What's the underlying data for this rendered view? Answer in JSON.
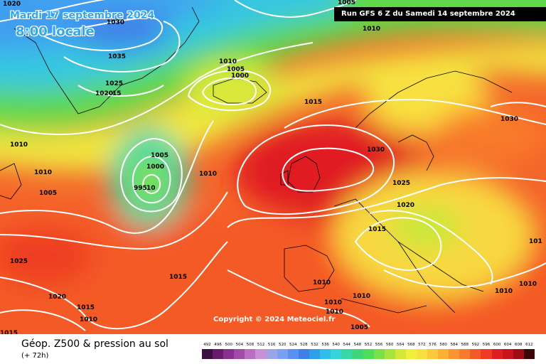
{
  "header": {
    "date": "Mardi 17 septembre 2024",
    "time": "8:00 locale",
    "run": "Run GFS 6 Z du Samedi 14 septembre 2024",
    "copyright": "Copyright © 2024 Meteociel.fr"
  },
  "footer": {
    "title": "Géop. Z500 & pression au sol",
    "subtitle": "(+ 72h)"
  },
  "scale": {
    "labels": [
      "492",
      "496",
      "500",
      "504",
      "508",
      "512",
      "516",
      "520",
      "524",
      "528",
      "532",
      "536",
      "540",
      "544",
      "548",
      "552",
      "556",
      "560",
      "564",
      "568",
      "572",
      "576",
      "580",
      "584",
      "588",
      "592",
      "596",
      "600",
      "604",
      "608",
      "612"
    ],
    "colors": [
      "#3b0f3f",
      "#6a1a6a",
      "#8a2f8f",
      "#a24aa8",
      "#b96ec2",
      "#c891d5",
      "#9aa4e6",
      "#7aa0f0",
      "#5a90f0",
      "#3f7fe8",
      "#2f9fe8",
      "#2fbfe8",
      "#36d6d8",
      "#3ad6a8",
      "#3ed67a",
      "#4fdc5a",
      "#7ae04a",
      "#a8e43e",
      "#d4e83a",
      "#f0f03a",
      "#f8e040",
      "#fcc83c",
      "#fcb034",
      "#fa9430",
      "#f87a2c",
      "#f45a28",
      "#ee3c24",
      "#e01e20",
      "#c8141c",
      "#a00c14",
      "#3a0808"
    ]
  },
  "isobar_labels": [
    {
      "text": "1020"
    },
    {
      "text": "1030"
    },
    {
      "text": "1005"
    },
    {
      "text": "1035"
    },
    {
      "text": "1025"
    },
    {
      "text": "1020"
    },
    {
      "text": "15"
    },
    {
      "text": "1010"
    },
    {
      "text": "1010"
    },
    {
      "text": "1005"
    },
    {
      "text": "1000"
    },
    {
      "text": "1015"
    },
    {
      "text": "1010"
    },
    {
      "text": "1005"
    },
    {
      "text": "1000"
    },
    {
      "text": "995"
    },
    {
      "text": "10"
    },
    {
      "text": "1010"
    },
    {
      "text": "1010"
    },
    {
      "text": "1005"
    },
    {
      "text": "1030"
    },
    {
      "text": "1030"
    },
    {
      "text": "1025"
    },
    {
      "text": "1020"
    },
    {
      "text": "1015"
    },
    {
      "text": "1025"
    },
    {
      "text": "1015"
    },
    {
      "text": "1020"
    },
    {
      "text": "1015"
    },
    {
      "text": "1010"
    },
    {
      "text": "1010"
    },
    {
      "text": "1010"
    },
    {
      "text": "1010"
    },
    {
      "text": "1010"
    },
    {
      "text": "1005"
    },
    {
      "text": "1015"
    },
    {
      "text": "1010"
    },
    {
      "text": "1010"
    },
    {
      "text": "101"
    }
  ]
}
